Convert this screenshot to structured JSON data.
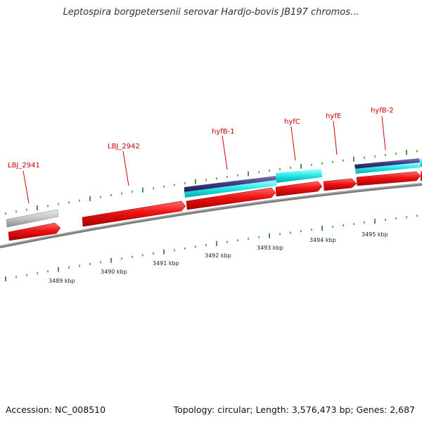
{
  "title": "Leptospira borgpetersenii serovar Hardjo-bovis JB197 chromos...",
  "footer": {
    "accession": "Accession: NC_008510",
    "summary": "Topology: circular; Length: 3,576,473 bp; Genes: 2,687"
  },
  "genes": [
    {
      "id": "LBJ_2941",
      "label": "LBJ_2941"
    },
    {
      "id": "LBJ_2942",
      "label": "LBJ_2942"
    },
    {
      "id": "hyfB-1",
      "label": "hyfB-1"
    },
    {
      "id": "hyfC",
      "label": "hyfC"
    },
    {
      "id": "hyfE",
      "label": "hyfE"
    },
    {
      "id": "hyfB-2",
      "label": "hyfB-2"
    }
  ],
  "kbp_labels": [
    "3489 kbp",
    "3490 kbp",
    "3491 kbp",
    "3492 kbp",
    "3493 kbp",
    "3494 kbp",
    "3495 kbp"
  ],
  "colors": {
    "cds": "#ee1111",
    "gene": "#c8c8c8",
    "purple_feature": "#3a3a80",
    "cyan_feature": "#22e6e6",
    "backbone": "#888888",
    "tick": "#1f7a1f",
    "label": "#cc0000"
  }
}
